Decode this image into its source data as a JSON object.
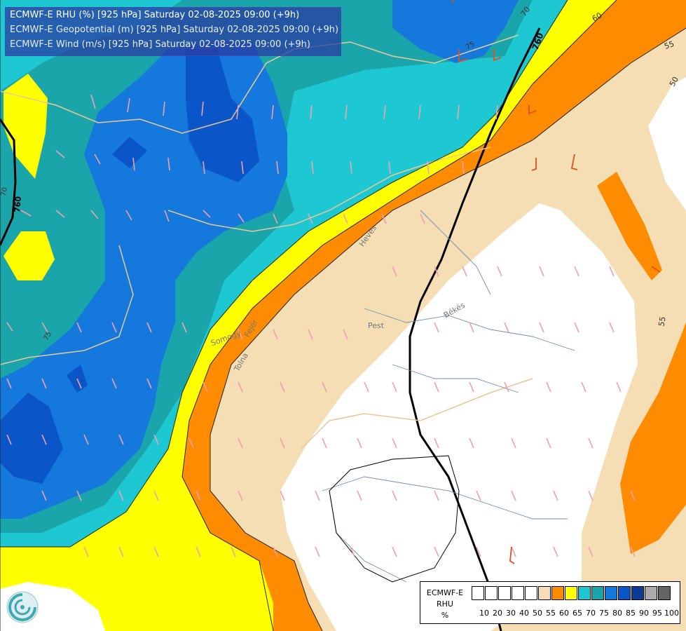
{
  "titles": {
    "line1": "ECMWF-E RHU (%) [925 hPa] Saturday 02-08-2025 09:00 (+9h)",
    "line2": "ECMWF-E Geopotential (m) [925 hPa] Saturday 02-08-2025 09:00 (+9h)",
    "line3": "ECMWF-E Wind (m/s) [925 hPa] Saturday 02-08-2025 09:00 (+9h)"
  },
  "legend": {
    "title_line1": "ECMWF-E",
    "title_line2": "RHU",
    "title_line3": "%",
    "colors": [
      "#ffffff",
      "#ffffff",
      "#ffffff",
      "#ffffff",
      "#ffffff",
      "#f5deb3",
      "#ff8c00",
      "#ffff00",
      "#1ec8d2",
      "#1aa5aa",
      "#1478dc",
      "#0a55c8",
      "#0a3c96",
      "#aaaaaa",
      "#646464"
    ],
    "ticks": [
      "10",
      "20",
      "30",
      "40",
      "50",
      "55",
      "60",
      "65",
      "70",
      "75",
      "80",
      "85",
      "90",
      "95",
      "100"
    ]
  },
  "contour_labels": {
    "rhu": [
      "75",
      "75",
      "70",
      "55",
      "55",
      "50",
      "60"
    ],
    "geopotential": [
      "760",
      "760",
      "760"
    ]
  },
  "place_labels": [
    "Heves",
    "Pest",
    "Békés",
    "Somogy",
    "Fejér",
    "Tolna"
  ],
  "icons": {
    "logo": "ecmwf-logo-icon"
  }
}
